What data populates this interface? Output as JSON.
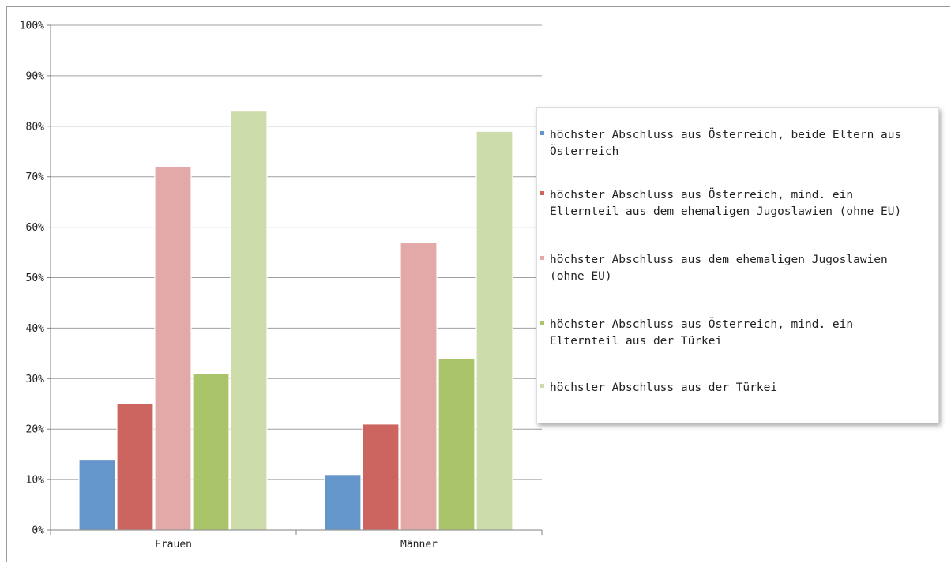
{
  "chart_data": {
    "type": "bar",
    "categories": [
      "Frauen",
      "Männer"
    ],
    "series": [
      {
        "name": "höchster Abschluss aus Österreich, beide Eltern aus Österreich",
        "values": [
          14,
          11
        ],
        "color": "#6596cb"
      },
      {
        "name": "höchster Abschluss aus Österreich, mind. ein Elternteil aus dem ehemaligen Jugoslawien (ohne EU)",
        "values": [
          25,
          21
        ],
        "color": "#cc655f"
      },
      {
        "name": "höchster Abschluss aus dem ehemaligen Jugoslawien (ohne EU)",
        "values": [
          72,
          57
        ],
        "color": "#e3a9a8"
      },
      {
        "name": "höchster Abschluss aus Österreich, mind. ein Elternteil aus der Türkei",
        "values": [
          31,
          34
        ],
        "color": "#aac46a"
      },
      {
        "name": "höchster Abschluss aus der Türkei",
        "values": [
          83,
          79
        ],
        "color": "#cddcab"
      }
    ],
    "yticks": [
      "0%",
      "10%",
      "20%",
      "30%",
      "40%",
      "50%",
      "60%",
      "70%",
      "80%",
      "90%",
      "100%"
    ],
    "ylim": [
      0,
      100
    ],
    "grid": true,
    "legend_position": "right"
  },
  "legend": {
    "items": [
      "höchster Abschluss aus Österreich, beide Eltern aus\nÖsterreich",
      "höchster Abschluss aus Österreich, mind. ein\nElternteil aus dem ehemaligen Jugoslawien (ohne EU)",
      "höchster Abschluss aus dem ehemaligen Jugoslawien\n(ohne EU)",
      "höchster Abschluss aus Österreich, mind. ein\nElternteil aus der Türkei",
      "höchster Abschluss aus der Türkei"
    ]
  }
}
